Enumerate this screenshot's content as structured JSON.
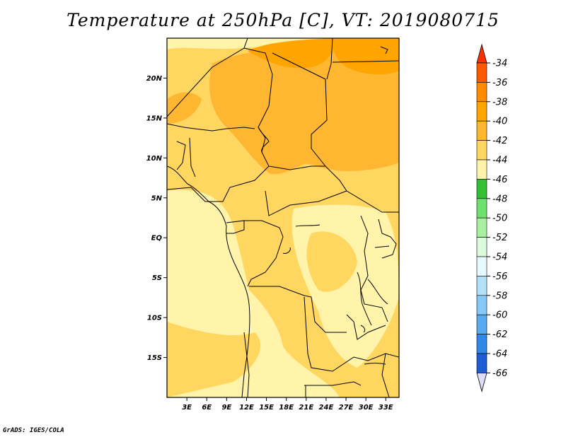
{
  "title": "Temperature at 250hPa [C], VT: 2019080715",
  "credit": "GrADS: IGES/COLA",
  "map": {
    "lon_range": [
      0,
      35
    ],
    "lat_range": [
      -20,
      25
    ],
    "lat_ticks": [
      {
        "lat": 20,
        "label": "20N"
      },
      {
        "lat": 15,
        "label": "15N"
      },
      {
        "lat": 10,
        "label": "10N"
      },
      {
        "lat": 5,
        "label": "5N"
      },
      {
        "lat": 0,
        "label": "EQ"
      },
      {
        "lat": -5,
        "label": "5S"
      },
      {
        "lat": -10,
        "label": "10S"
      },
      {
        "lat": -15,
        "label": "15S"
      }
    ],
    "lon_ticks": [
      {
        "lon": 3,
        "label": "3E"
      },
      {
        "lon": 6,
        "label": "6E"
      },
      {
        "lon": 9,
        "label": "9E"
      },
      {
        "lon": 12,
        "label": "12E"
      },
      {
        "lon": 15,
        "label": "15E"
      },
      {
        "lon": 18,
        "label": "18E"
      },
      {
        "lon": 21,
        "label": "21E"
      },
      {
        "lon": 24,
        "label": "24E"
      },
      {
        "lon": 27,
        "label": "27E"
      },
      {
        "lon": 30,
        "label": "30E"
      },
      {
        "lon": 33,
        "label": "33E"
      }
    ]
  },
  "colorbar": {
    "levels": [
      "-34",
      "-36",
      "-38",
      "-40",
      "-42",
      "-44",
      "-46",
      "-48",
      "-50",
      "-52",
      "-54",
      "-56",
      "-58",
      "-60",
      "-62",
      "-64",
      "-66"
    ],
    "colors": [
      "#ff5a00",
      "#ff8c00",
      "#ffa500",
      "#ffb732",
      "#ffd660",
      "#fff4aa",
      "#35bf35",
      "#6ee06e",
      "#a8f0a0",
      "#dcfadc",
      "#e8faff",
      "#b4e1fa",
      "#88c8f8",
      "#5aaaf0",
      "#3088e8",
      "#1e5ed2",
      "#1438b4",
      "#101490"
    ],
    "over_color": "#ff3000",
    "under_color": "#ddddf8"
  }
}
